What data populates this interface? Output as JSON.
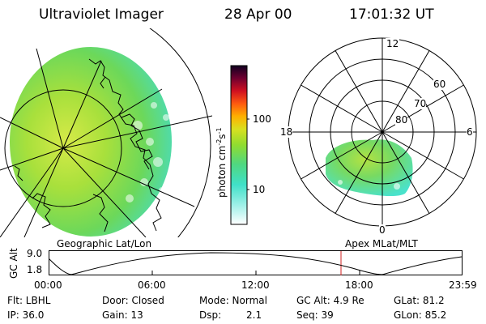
{
  "header": {
    "instrument": "Ultraviolet Imager",
    "date": "28 Apr 00",
    "time": "17:01:32 UT"
  },
  "colorbar": {
    "unit_label": "photon cm",
    "unit_exp1": "-2",
    "unit_mid": "s",
    "unit_exp2": "-1",
    "tick_labels": [
      "100",
      "10"
    ]
  },
  "polar_plot": {
    "mlt_labels": [
      "12",
      "18",
      "6",
      "0"
    ],
    "lat_labels": [
      "60",
      "70",
      "80"
    ]
  },
  "map_labels": {
    "geographic": "Geographic Lat/Lon",
    "apex": "Apex MLat/MLT"
  },
  "altitude_plot": {
    "axis_label": "GC Alt",
    "y_ticks": [
      "9.0",
      "1.8"
    ],
    "x_ticks": [
      "00:00",
      "06:00",
      "12:00",
      "18:00",
      "23:59"
    ]
  },
  "status": {
    "row1": {
      "filter": "Flt: LBHL",
      "door": "Door: Closed",
      "mode": "Mode: Normal",
      "gc_alt": "GC Alt: 4.9 Re",
      "glat": "GLat: 81.2"
    },
    "row2": {
      "ip": "IP: 36.0",
      "gain": "Gain: 13",
      "dsp_label": "Dsp:",
      "dsp_value": "2.1",
      "seq": "Seq: 39",
      "glon": "GLon: 85.2"
    }
  },
  "colors": {
    "image_green": "#8fdc3a",
    "image_cyan": "#40e0c8",
    "image_yellow": "#d8e850",
    "current_time_marker": "#d02020"
  }
}
